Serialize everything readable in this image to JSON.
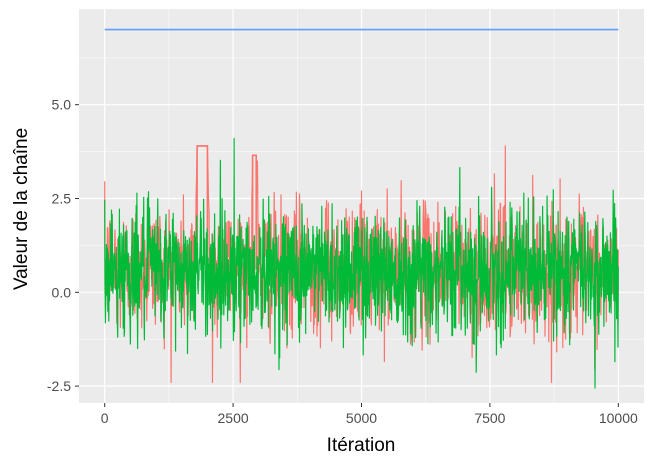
{
  "chart_data": {
    "type": "line",
    "title": "",
    "xlabel": "Itération",
    "ylabel": "Valeur de la chaîne",
    "xlim": [
      -500,
      10500
    ],
    "ylim": [
      -2.95,
      7.55
    ],
    "x_ticks": [
      0,
      2500,
      5000,
      7500,
      10000
    ],
    "x_tick_labels": [
      "0",
      "2500",
      "5000",
      "7500",
      "10000"
    ],
    "y_ticks": [
      -2.5,
      0.0,
      2.5,
      5.0
    ],
    "y_tick_labels": [
      "-2.5",
      "0.0",
      "2.5",
      "5.0"
    ],
    "grid": true,
    "legend": "none",
    "background": "#ebebeb",
    "series": [
      {
        "color": "#f8766d",
        "style": "noisy trace",
        "x": [
          0,
          1000,
          1750,
          1800,
          2000,
          2050,
          2500,
          2850,
          2880,
          2950,
          3000,
          5000,
          5400,
          7500,
          10000
        ],
        "values": [
          0.6,
          0.7,
          0.6,
          3.9,
          3.9,
          0.6,
          0.7,
          0.6,
          3.65,
          3.65,
          0.6,
          0.7,
          0.6,
          0.6,
          0.5
        ],
        "min": -2.4,
        "max": 3.9
      },
      {
        "color": "#00ba38",
        "style": "noisy trace",
        "x": [
          0,
          2500,
          5000,
          7500,
          10000
        ],
        "values": [
          0.6,
          0.6,
          0.6,
          0.6,
          0.6
        ],
        "min": -2.55,
        "max": 4.1
      },
      {
        "color": "#619cff",
        "style": "constant",
        "x": [
          0,
          10000
        ],
        "values": [
          7.0,
          7.0
        ]
      }
    ]
  }
}
